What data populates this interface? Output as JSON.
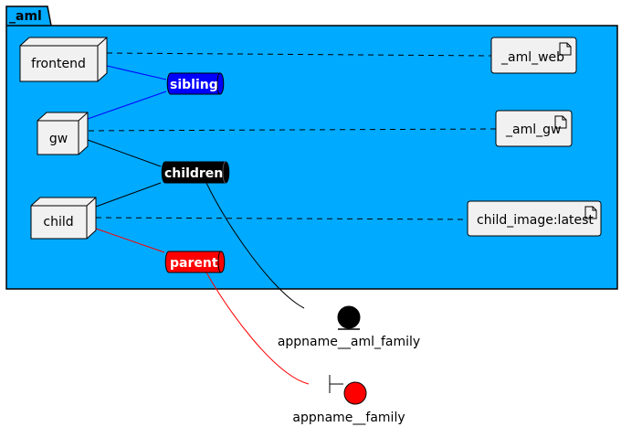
{
  "package": {
    "name": "_aml",
    "fill": "#00AAFF"
  },
  "nodes": [
    {
      "id": "frontend",
      "label": "frontend"
    },
    {
      "id": "gw",
      "label": "gw"
    },
    {
      "id": "child",
      "label": "child"
    }
  ],
  "artifacts": [
    {
      "id": "aml_web",
      "label": "_aml_web",
      "icon": "document-icon"
    },
    {
      "id": "aml_gw",
      "label": "_aml_gw",
      "icon": "document-icon"
    },
    {
      "id": "child_image",
      "label": "child_image:latest",
      "icon": "document-icon"
    }
  ],
  "queues": [
    {
      "id": "sibling",
      "label": "sibling",
      "fill": "#0000FF"
    },
    {
      "id": "children",
      "label": "children",
      "fill": "#000000"
    },
    {
      "id": "parent",
      "label": "parent",
      "fill": "#FF0000"
    }
  ],
  "external": [
    {
      "id": "aml_family",
      "label": "appname__aml_family",
      "kind": "entity",
      "color": "#000000"
    },
    {
      "id": "family",
      "label": "appname__family",
      "kind": "boundary",
      "color": "#FF0000"
    }
  ],
  "edges": [
    {
      "from": "frontend",
      "to": "aml_web",
      "style": "dashed",
      "color": "#000000"
    },
    {
      "from": "gw",
      "to": "aml_gw",
      "style": "dashed",
      "color": "#000000"
    },
    {
      "from": "child",
      "to": "child_image",
      "style": "dashed",
      "color": "#000000"
    },
    {
      "from": "frontend",
      "to": "sibling",
      "style": "solid",
      "color": "#0000FF"
    },
    {
      "from": "gw",
      "to": "sibling",
      "style": "solid",
      "color": "#0000FF"
    },
    {
      "from": "gw",
      "to": "children",
      "style": "solid",
      "color": "#000000"
    },
    {
      "from": "child",
      "to": "children",
      "style": "solid",
      "color": "#000000"
    },
    {
      "from": "child",
      "to": "parent",
      "style": "solid",
      "color": "#FF0000"
    },
    {
      "from": "children",
      "to": "aml_family",
      "style": "solid",
      "color": "#000000"
    },
    {
      "from": "parent",
      "to": "family",
      "style": "solid",
      "color": "#FF0000"
    }
  ]
}
